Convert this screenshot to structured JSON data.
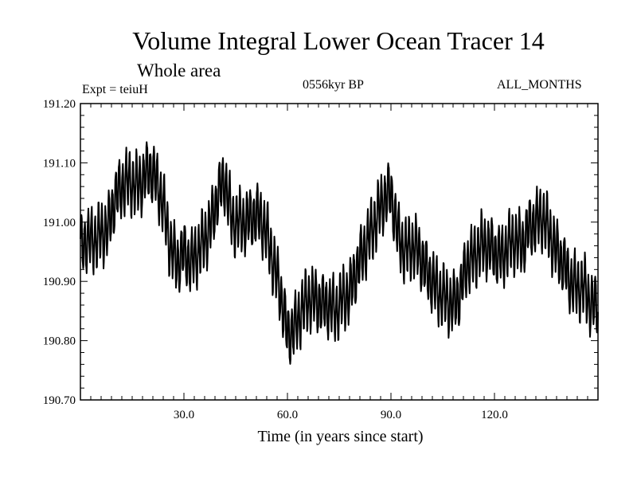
{
  "chart_data": {
    "type": "line",
    "title": "Volume Integral Lower Ocean Tracer 14",
    "subtitle": "Whole area",
    "experiment_label": "Expt = teiuH",
    "period_label": "0556kyr BP",
    "months_label": "ALL_MONTHS",
    "xlabel": "Time (in years since start)",
    "ylabel": "",
    "xlim": [
      0,
      150
    ],
    "ylim": [
      190.7,
      191.2
    ],
    "x_ticks": [
      30,
      60,
      90,
      120
    ],
    "x_tick_labels": [
      "30.0",
      "60.0",
      "90.0",
      "120.0"
    ],
    "y_ticks": [
      190.7,
      190.8,
      190.9,
      191.0,
      191.1,
      191.2
    ],
    "y_tick_labels": [
      "190.70",
      "190.80",
      "190.90",
      "191.00",
      "191.10",
      "191.20"
    ],
    "grid": false,
    "series": [
      {
        "name": "Lower Ocean Tracer 14 volume integral",
        "annual_cycle_amplitude": 0.045,
        "x": [
          0,
          2,
          4,
          6,
          8,
          10,
          12,
          14,
          16,
          18,
          20,
          22,
          24,
          26,
          28,
          30,
          32,
          34,
          36,
          38,
          40,
          42,
          44,
          46,
          48,
          50,
          52,
          54,
          56,
          58,
          60,
          62,
          64,
          66,
          68,
          70,
          72,
          74,
          76,
          78,
          80,
          82,
          84,
          86,
          88,
          90,
          92,
          94,
          96,
          98,
          100,
          102,
          104,
          106,
          108,
          110,
          112,
          114,
          116,
          118,
          120,
          122,
          124,
          126,
          128,
          130,
          132,
          134,
          136,
          138,
          140,
          142,
          144,
          146,
          148,
          150
        ],
        "y": [
          190.96,
          190.97,
          190.97,
          190.98,
          190.99,
          191.04,
          191.06,
          191.07,
          191.06,
          191.07,
          191.09,
          191.07,
          191.03,
          190.96,
          190.93,
          190.95,
          190.93,
          190.95,
          190.97,
          191.0,
          191.05,
          191.07,
          191.0,
          191.0,
          191.0,
          191.01,
          191.01,
          190.98,
          190.93,
          190.88,
          190.81,
          190.82,
          190.85,
          190.87,
          190.87,
          190.86,
          190.86,
          190.85,
          190.87,
          190.88,
          190.92,
          190.95,
          190.98,
          191.01,
          191.04,
          191.05,
          190.98,
          190.95,
          190.96,
          190.95,
          190.92,
          190.9,
          190.88,
          190.87,
          190.86,
          190.88,
          190.93,
          190.94,
          190.96,
          190.96,
          190.95,
          190.94,
          190.96,
          190.97,
          190.96,
          190.99,
          191.0,
          191.01,
          190.98,
          190.95,
          190.93,
          190.9,
          190.89,
          190.89,
          190.86,
          190.86
        ]
      }
    ]
  }
}
